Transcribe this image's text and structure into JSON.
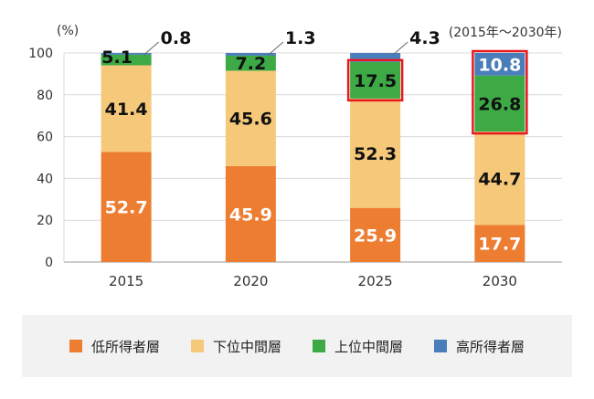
{
  "chart_data": {
    "type": "bar",
    "stacked": true,
    "categories": [
      "2015",
      "2020",
      "2025",
      "2030"
    ],
    "series": [
      {
        "name": "低所得者層",
        "values": [
          52.7,
          45.9,
          25.9,
          17.7
        ],
        "color": "#ed7d31"
      },
      {
        "name": "下位中間層",
        "values": [
          41.4,
          45.6,
          52.3,
          44.7
        ],
        "color": "#f5c87a"
      },
      {
        "name": "上位中間層",
        "values": [
          5.1,
          7.2,
          17.5,
          26.8
        ],
        "color": "#3daa45"
      },
      {
        "name": "高所得者層",
        "values": [
          0.8,
          1.3,
          4.3,
          10.8
        ],
        "color": "#4a7ebb"
      }
    ],
    "ylabel": "(%)",
    "ylim": [
      0,
      100
    ],
    "yticks": [
      0,
      20,
      40,
      60,
      80,
      100
    ],
    "annotation": "(2015年～2030年)",
    "highlighted_segments": [
      {
        "category": "2025",
        "series": "上位中間層"
      },
      {
        "category": "2030",
        "series": "上位中間層"
      },
      {
        "category": "2030",
        "series": "高所得者層"
      }
    ],
    "grid": true,
    "legend_position": "bottom"
  }
}
